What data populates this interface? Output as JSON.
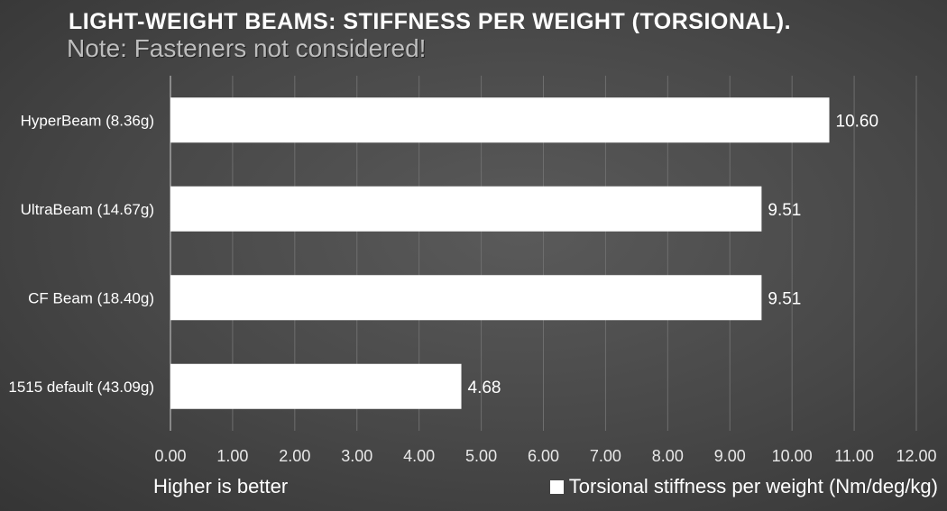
{
  "chart_data": {
    "type": "bar",
    "orientation": "horizontal",
    "title": "LIGHT-WEIGHT BEAMS: STIFFNESS PER WEIGHT (TORSIONAL).",
    "subtitle": "Note: Fasteners not considered!",
    "categories": [
      "HyperBeam (8.36g)",
      "UltraBeam (14.67g)",
      "CF Beam (18.40g)",
      "1515 default (43.09g)"
    ],
    "series": [
      {
        "name": "Torsional stiffness per weight (Nm/deg/kg)",
        "values": [
          10.6,
          9.51,
          9.51,
          4.68
        ]
      }
    ],
    "data_labels": [
      "10.60",
      "9.51",
      "9.51",
      "4.68"
    ],
    "xlim": [
      0,
      12
    ],
    "x_ticks": [
      "0.00",
      "1.00",
      "2.00",
      "3.00",
      "4.00",
      "5.00",
      "6.00",
      "7.00",
      "8.00",
      "9.00",
      "10.00",
      "11.00",
      "12.00"
    ],
    "xlabel": "",
    "ylabel": "",
    "grid": true,
    "legend_position": "bottom-right",
    "annotation": "Higher is better",
    "colors": {
      "bar": "#ffffff",
      "grid": "#6e6e6e",
      "text": "#ffffff"
    }
  }
}
